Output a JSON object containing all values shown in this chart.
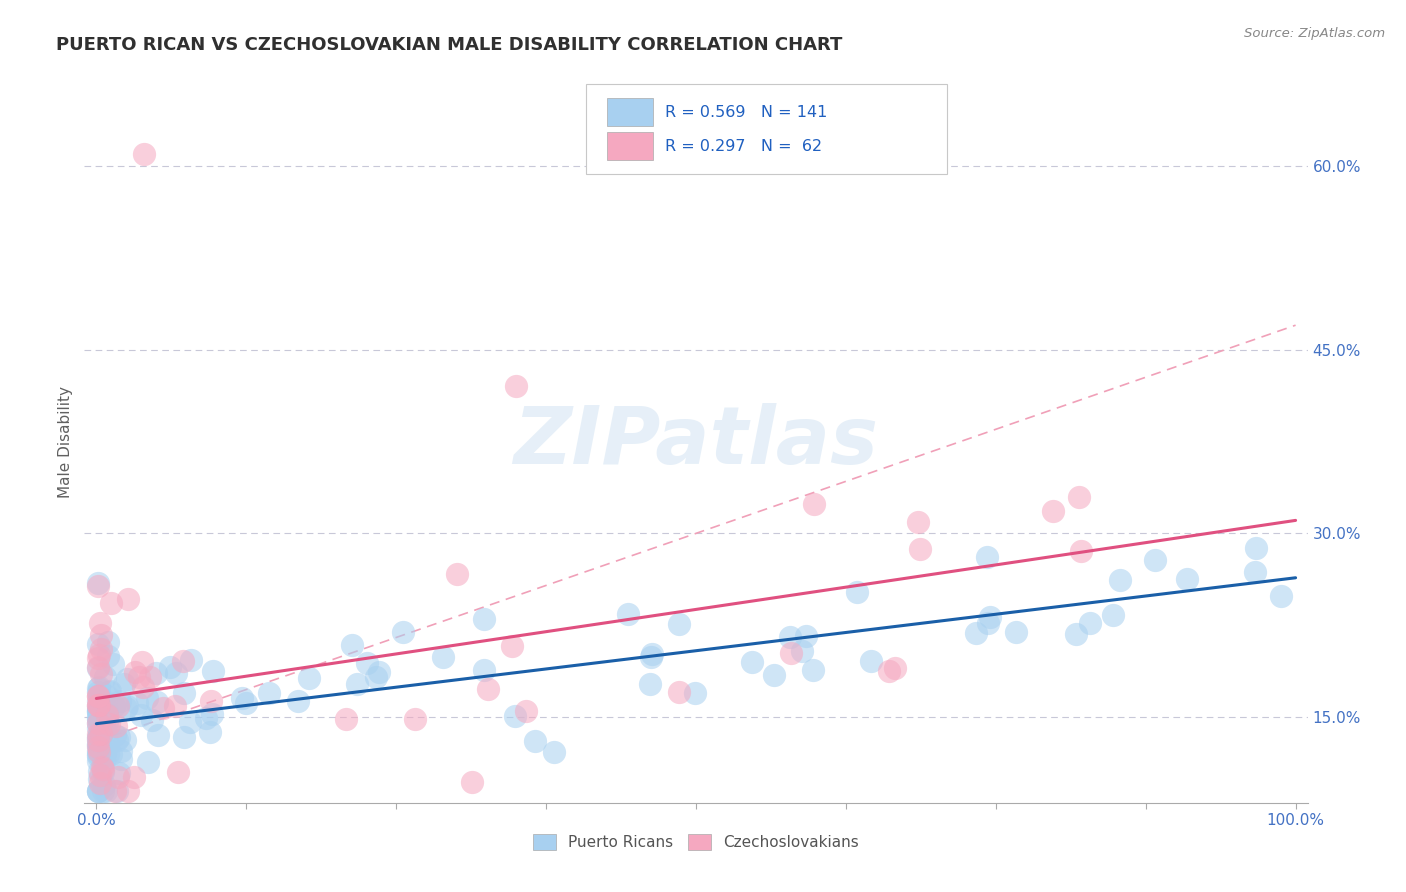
{
  "title": "PUERTO RICAN VS CZECHOSLOVAKIAN MALE DISABILITY CORRELATION CHART",
  "source": "Source: ZipAtlas.com",
  "ylabel": "Male Disability",
  "r_puerto_rican": 0.569,
  "n_puerto_rican": 141,
  "r_czechoslovakian": 0.297,
  "n_czechoslovakian": 62,
  "xlim": [
    -0.01,
    1.01
  ],
  "ylim": [
    0.08,
    0.67
  ],
  "right_yticks": [
    0.15,
    0.3,
    0.45,
    0.6
  ],
  "right_yticklabels": [
    "15.0%",
    "30.0%",
    "45.0%",
    "60.0%"
  ],
  "color_puerto_rican": "#a8d0f0",
  "color_czechoslovakian": "#f5a8c0",
  "trendline_color_pr": "#1a5fa8",
  "trendline_color_cs": "#e05080",
  "dashed_color": "#f0a0b8",
  "watermark": "ZIPatlas",
  "background_color": "#ffffff",
  "grid_color": "#c8c8d8",
  "title_color": "#303030",
  "legend_text_color": "#2060c0",
  "axis_label_color": "#4472c4",
  "bottom_legend_color": "#555555"
}
